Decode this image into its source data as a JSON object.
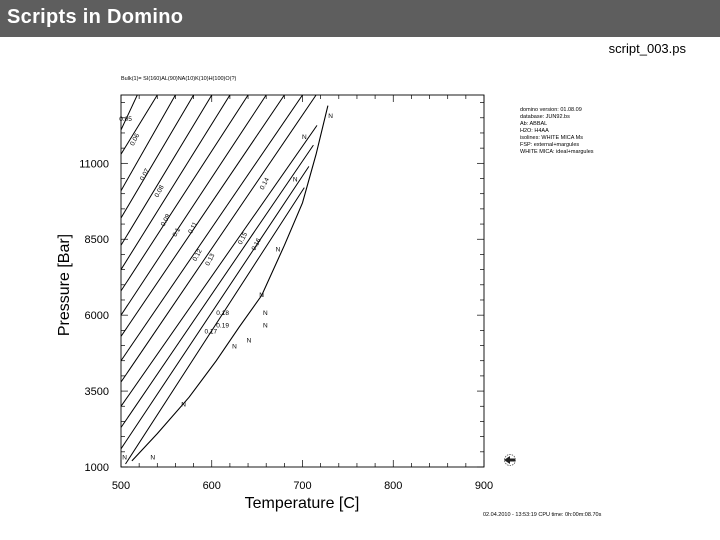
{
  "header": {
    "title": "Scripts in Domino",
    "filename": "script_003.ps"
  },
  "chart_data": {
    "type": "line",
    "xlabel": "Temperature [C]",
    "ylabel": "Pressure [Bar]",
    "xlim": [
      500,
      900
    ],
    "ylim": [
      1000,
      13250
    ],
    "xticks": [
      500,
      600,
      700,
      800,
      900
    ],
    "yticks": [
      1000,
      3500,
      6000,
      8500,
      11000
    ],
    "bulk": "Bulk(1)= SI(160)AL(90)NA(10)K(10)H(100)O(?)",
    "info_lines": [
      "domino version: 01.08.09",
      "database: JUN92.bs",
      "Ab: ABBAL",
      "H2O: H4AA",
      "isolines: WHITE MICA Ms",
      "FSP: external+margules",
      "WHITE MICA: ideal+margules"
    ],
    "footer": "02.04.2010 - 13:53:19  CPU time:   0h:00m:08.70s",
    "reaction_line": [
      [
        512,
        1200
      ],
      [
        540,
        2100
      ],
      [
        575,
        3300
      ],
      [
        605,
        4500
      ],
      [
        630,
        5600
      ],
      [
        655,
        6650
      ],
      [
        680,
        8300
      ],
      [
        700,
        9700
      ],
      [
        715,
        11300
      ],
      [
        728,
        12900
      ]
    ],
    "isolines": [
      {
        "label": "0.05",
        "points": [
          [
            500,
            12100
          ],
          [
            518,
            13250
          ]
        ]
      },
      {
        "label": "0.06",
        "points": [
          [
            500,
            11300
          ],
          [
            540,
            13250
          ]
        ]
      },
      {
        "label": "0.07",
        "points": [
          [
            500,
            10100
          ],
          [
            560,
            13250
          ]
        ]
      },
      {
        "label": "0.08",
        "points": [
          [
            500,
            9200
          ],
          [
            580,
            13250
          ]
        ]
      },
      {
        "label": "0.09",
        "points": [
          [
            500,
            8300
          ],
          [
            600,
            13250
          ]
        ]
      },
      {
        "label": "0.1",
        "points": [
          [
            500,
            7500
          ],
          [
            620,
            13250
          ]
        ]
      },
      {
        "label": "0.11",
        "points": [
          [
            500,
            6800
          ],
          [
            640,
            13250
          ]
        ]
      },
      {
        "label": "0.12",
        "points": [
          [
            500,
            6000
          ],
          [
            660,
            13250
          ]
        ]
      },
      {
        "label": "0.13",
        "points": [
          [
            500,
            5300
          ],
          [
            680,
            13250
          ]
        ]
      },
      {
        "label": "0.14",
        "points": [
          [
            500,
            4500
          ],
          [
            700,
            13250
          ]
        ]
      },
      {
        "label": "0.15",
        "points": [
          [
            500,
            3800
          ],
          [
            715,
            13250
          ]
        ]
      },
      {
        "label": "0.16",
        "points": [
          [
            500,
            3000
          ],
          [
            716,
            12250
          ]
        ]
      },
      {
        "label": "0.17",
        "points": [
          [
            500,
            2300
          ],
          [
            712,
            11600
          ]
        ]
      },
      {
        "label": "0.18",
        "points": [
          [
            500,
            1600
          ],
          [
            707,
            10900
          ]
        ]
      },
      {
        "label": "0.19",
        "points": [
          [
            505,
            1100
          ],
          [
            702,
            10200
          ]
        ]
      }
    ],
    "iso_labels": [
      {
        "text": "0.05",
        "x": 505,
        "y": 12400,
        "angle": 0
      },
      {
        "text": "0.06",
        "x": 517,
        "y": 11750,
        "angle": -62
      },
      {
        "text": "0.07",
        "x": 528,
        "y": 10600,
        "angle": -62
      },
      {
        "text": "0.08",
        "x": 544,
        "y": 10050,
        "angle": -62
      },
      {
        "text": "0.09",
        "x": 551,
        "y": 9100,
        "angle": -62
      },
      {
        "text": "0.1",
        "x": 563,
        "y": 8700,
        "angle": -62
      },
      {
        "text": "0.11",
        "x": 581,
        "y": 8850,
        "angle": -62
      },
      {
        "text": "0.12",
        "x": 586,
        "y": 7950,
        "angle": -62
      },
      {
        "text": "0.13",
        "x": 600,
        "y": 7800,
        "angle": -62
      },
      {
        "text": "0.14",
        "x": 660,
        "y": 10300,
        "angle": -62
      },
      {
        "text": "0.15",
        "x": 636,
        "y": 8500,
        "angle": -62
      },
      {
        "text": "0.16",
        "x": 651,
        "y": 8300,
        "angle": -62
      },
      {
        "text": "0.18",
        "x": 612,
        "y": 6000,
        "angle": 0
      },
      {
        "text": "0.19",
        "x": 612,
        "y": 5600,
        "angle": 0
      },
      {
        "text": "0.17",
        "x": 599,
        "y": 5400,
        "angle": 0
      }
    ],
    "n_labels": [
      {
        "text": "N",
        "x": 731,
        "y": 12500
      },
      {
        "text": "N",
        "x": 702,
        "y": 11800
      },
      {
        "text": "N",
        "x": 692,
        "y": 10400
      },
      {
        "text": "N",
        "x": 673,
        "y": 8100
      },
      {
        "text": "N",
        "x": 655,
        "y": 6600
      },
      {
        "text": "N",
        "x": 659,
        "y": 6000
      },
      {
        "text": "N",
        "x": 659,
        "y": 5600
      },
      {
        "text": "N",
        "x": 641,
        "y": 5100
      },
      {
        "text": "N",
        "x": 625,
        "y": 4900
      },
      {
        "text": "N",
        "x": 569,
        "y": 3000
      },
      {
        "text": "N",
        "x": 504,
        "y": 1250
      },
      {
        "text": "N",
        "x": 535,
        "y": 1250
      }
    ]
  }
}
